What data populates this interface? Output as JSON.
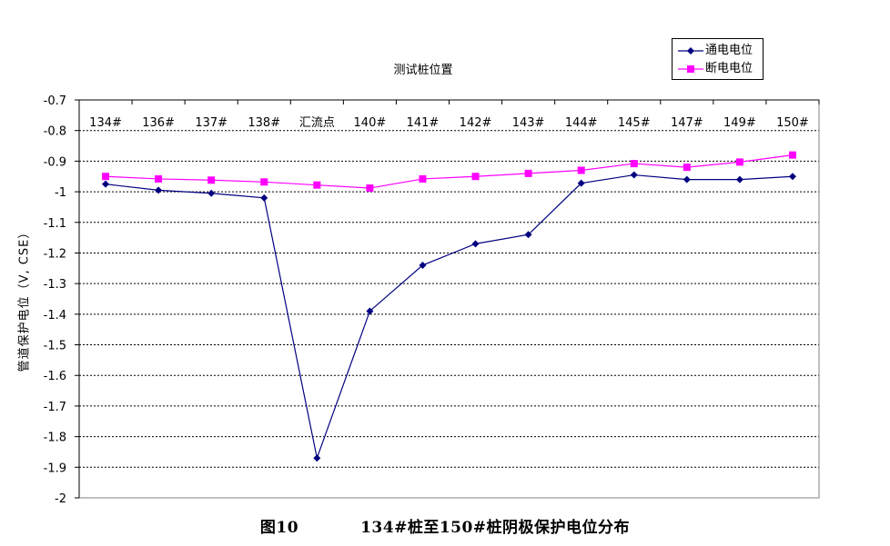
{
  "chart_data": {
    "type": "line",
    "xlabel": "测试桩位置",
    "ylabel": "管道保护电位（V, CSE）",
    "categories": [
      "134#",
      "136#",
      "137#",
      "138#",
      "汇流点",
      "140#",
      "141#",
      "142#",
      "143#",
      "144#",
      "145#",
      "147#",
      "149#",
      "150#"
    ],
    "ylim": [
      -2,
      -0.7
    ],
    "yticks": [
      -0.7,
      -0.8,
      -0.9,
      -1,
      -1.1,
      -1.2,
      -1.3,
      -1.4,
      -1.5,
      -1.6,
      -1.7,
      -1.8,
      -1.9,
      -2
    ],
    "grid": true,
    "x_axis_position": "top",
    "legend_position": "top-right",
    "series": [
      {
        "name": "通电电位",
        "color": "#000080",
        "marker": "diamond",
        "values": [
          -0.975,
          -0.995,
          -1.005,
          -1.02,
          -1.87,
          -1.39,
          -1.24,
          -1.17,
          -1.14,
          -0.972,
          -0.945,
          -0.96,
          -0.96,
          -0.95
        ]
      },
      {
        "name": "断电电位",
        "color": "#FF00FF",
        "marker": "square",
        "values": [
          -0.95,
          -0.958,
          -0.962,
          -0.968,
          -0.978,
          -0.988,
          -0.958,
          -0.95,
          -0.94,
          -0.93,
          -0.908,
          -0.92,
          -0.903,
          -0.88
        ]
      }
    ]
  },
  "caption": {
    "figure": "图10",
    "text": "134#桩至150#桩阴极保护电位分布"
  }
}
